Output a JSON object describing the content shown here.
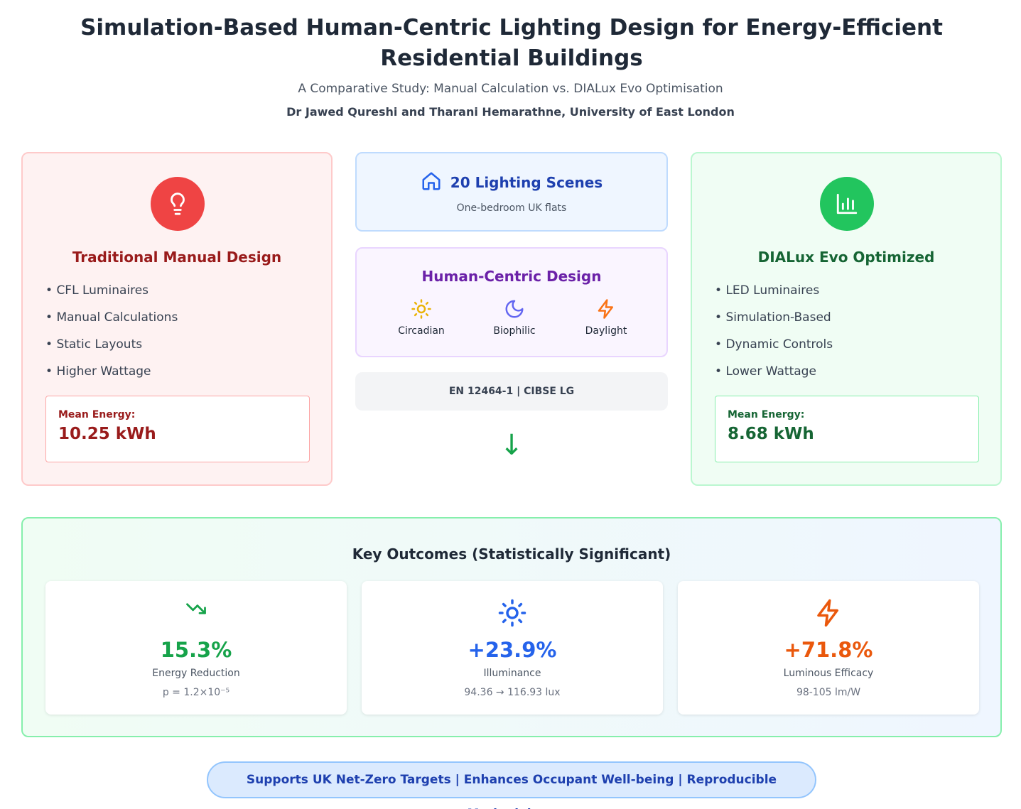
{
  "header": {
    "title": "Simulation-Based Human-Centric Lighting Design for Energy-Efficient Residential Buildings",
    "subtitle": "A Comparative Study: Manual Calculation vs. DIALux Evo Optimisation",
    "authors": "Dr Jawed Qureshi and Tharani Hemarathne, University of East London"
  },
  "manual": {
    "icon": "lightbulb-icon",
    "title": "Traditional Manual Design",
    "bullets": [
      "CFL Luminaires",
      "Manual Calculations",
      "Static Layouts",
      "Higher Wattage"
    ],
    "energy_label": "Mean Energy:",
    "energy_value": "10.25 kWh"
  },
  "dialux": {
    "icon": "bar-chart-icon",
    "title": "DIALux Evo Optimized",
    "bullets": [
      "LED Luminaires",
      "Simulation-Based",
      "Dynamic Controls",
      "Lower Wattage"
    ],
    "energy_label": "Mean Energy:",
    "energy_value": "8.68 kWh"
  },
  "scenes": {
    "icon": "home-icon",
    "title": "20 Lighting Scenes",
    "subtitle": "One-bedroom UK flats"
  },
  "hcd": {
    "title": "Human-Centric Design",
    "items": [
      {
        "label": "Circadian",
        "icon": "sun-icon"
      },
      {
        "label": "Biophilic",
        "icon": "moon-icon"
      },
      {
        "label": "Daylight",
        "icon": "lightning-icon"
      }
    ]
  },
  "standards": "EN 12464-1 | CIBSE LG",
  "outcomes": {
    "title": "Key Outcomes (Statistically Significant)",
    "cards": [
      {
        "icon": "trending-down-icon",
        "value": "15.3%",
        "label": "Energy Reduction",
        "sub": "p = 1.2×10⁻⁵",
        "color": "#16a34a"
      },
      {
        "icon": "sun-icon",
        "value": "+23.9%",
        "label": "Illuminance",
        "sub": "94.36 → 116.93 lux",
        "color": "#2563eb"
      },
      {
        "icon": "lightning-icon",
        "value": "+71.8%",
        "label": "Luminous Efficacy",
        "sub": "98-105 lm/W",
        "color": "#ea580c"
      }
    ]
  },
  "footer": "Supports UK Net-Zero Targets | Enhances Occupant Well-being | Reproducible Methodology",
  "colors": {
    "manual_accent": "#ef4444",
    "dialux_accent": "#22c55e",
    "scenes_accent": "#1e40af",
    "hcd_accent": "#6b21a8"
  }
}
